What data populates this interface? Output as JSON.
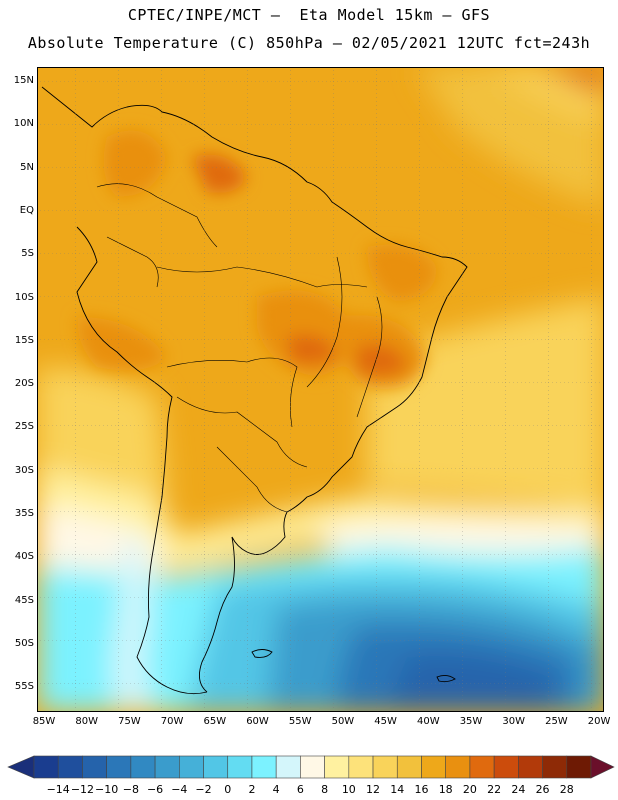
{
  "title_line1": "CPTEC/INPE/MCT –  Eta Model 15km – GFS",
  "title_line2": "Absolute Temperature (C) 850hPa – 02/05/2021 12UTC fct=243h",
  "lat_labels": [
    "15N",
    "10N",
    "5N",
    "EQ",
    "5S",
    "10S",
    "15S",
    "20S",
    "25S",
    "30S",
    "35S",
    "40S",
    "45S",
    "50S",
    "55S"
  ],
  "lon_labels": [
    "85W",
    "80W",
    "75W",
    "70W",
    "65W",
    "60W",
    "55W",
    "50W",
    "45W",
    "40W",
    "35W",
    "30W",
    "25W",
    "20W"
  ],
  "colorbar": {
    "labels": [
      "-14",
      "-12",
      "-10",
      "-8",
      "-6",
      "-4",
      "-2",
      "0",
      "2",
      "4",
      "6",
      "8",
      "10",
      "12",
      "14",
      "16",
      "18",
      "20",
      "22",
      "24",
      "26",
      "28"
    ],
    "colors": [
      "#1a3d8f",
      "#1f4f9d",
      "#2563ab",
      "#2b77b8",
      "#3189c2",
      "#3a9ccc",
      "#45b0d8",
      "#52c6e6",
      "#63dcf2",
      "#7cf2ff",
      "#d4f6fb",
      "#fff8e6",
      "#fff1a0",
      "#fde27a",
      "#f9d35a",
      "#f2c13c",
      "#eea81a",
      "#e99010",
      "#e06a0e",
      "#cc4c0c",
      "#b23a0a",
      "#8e2a06",
      "#6e1a04"
    ],
    "low_arrow_color": "#1a2f7a",
    "high_arrow_color": "#6a0f2a"
  }
}
